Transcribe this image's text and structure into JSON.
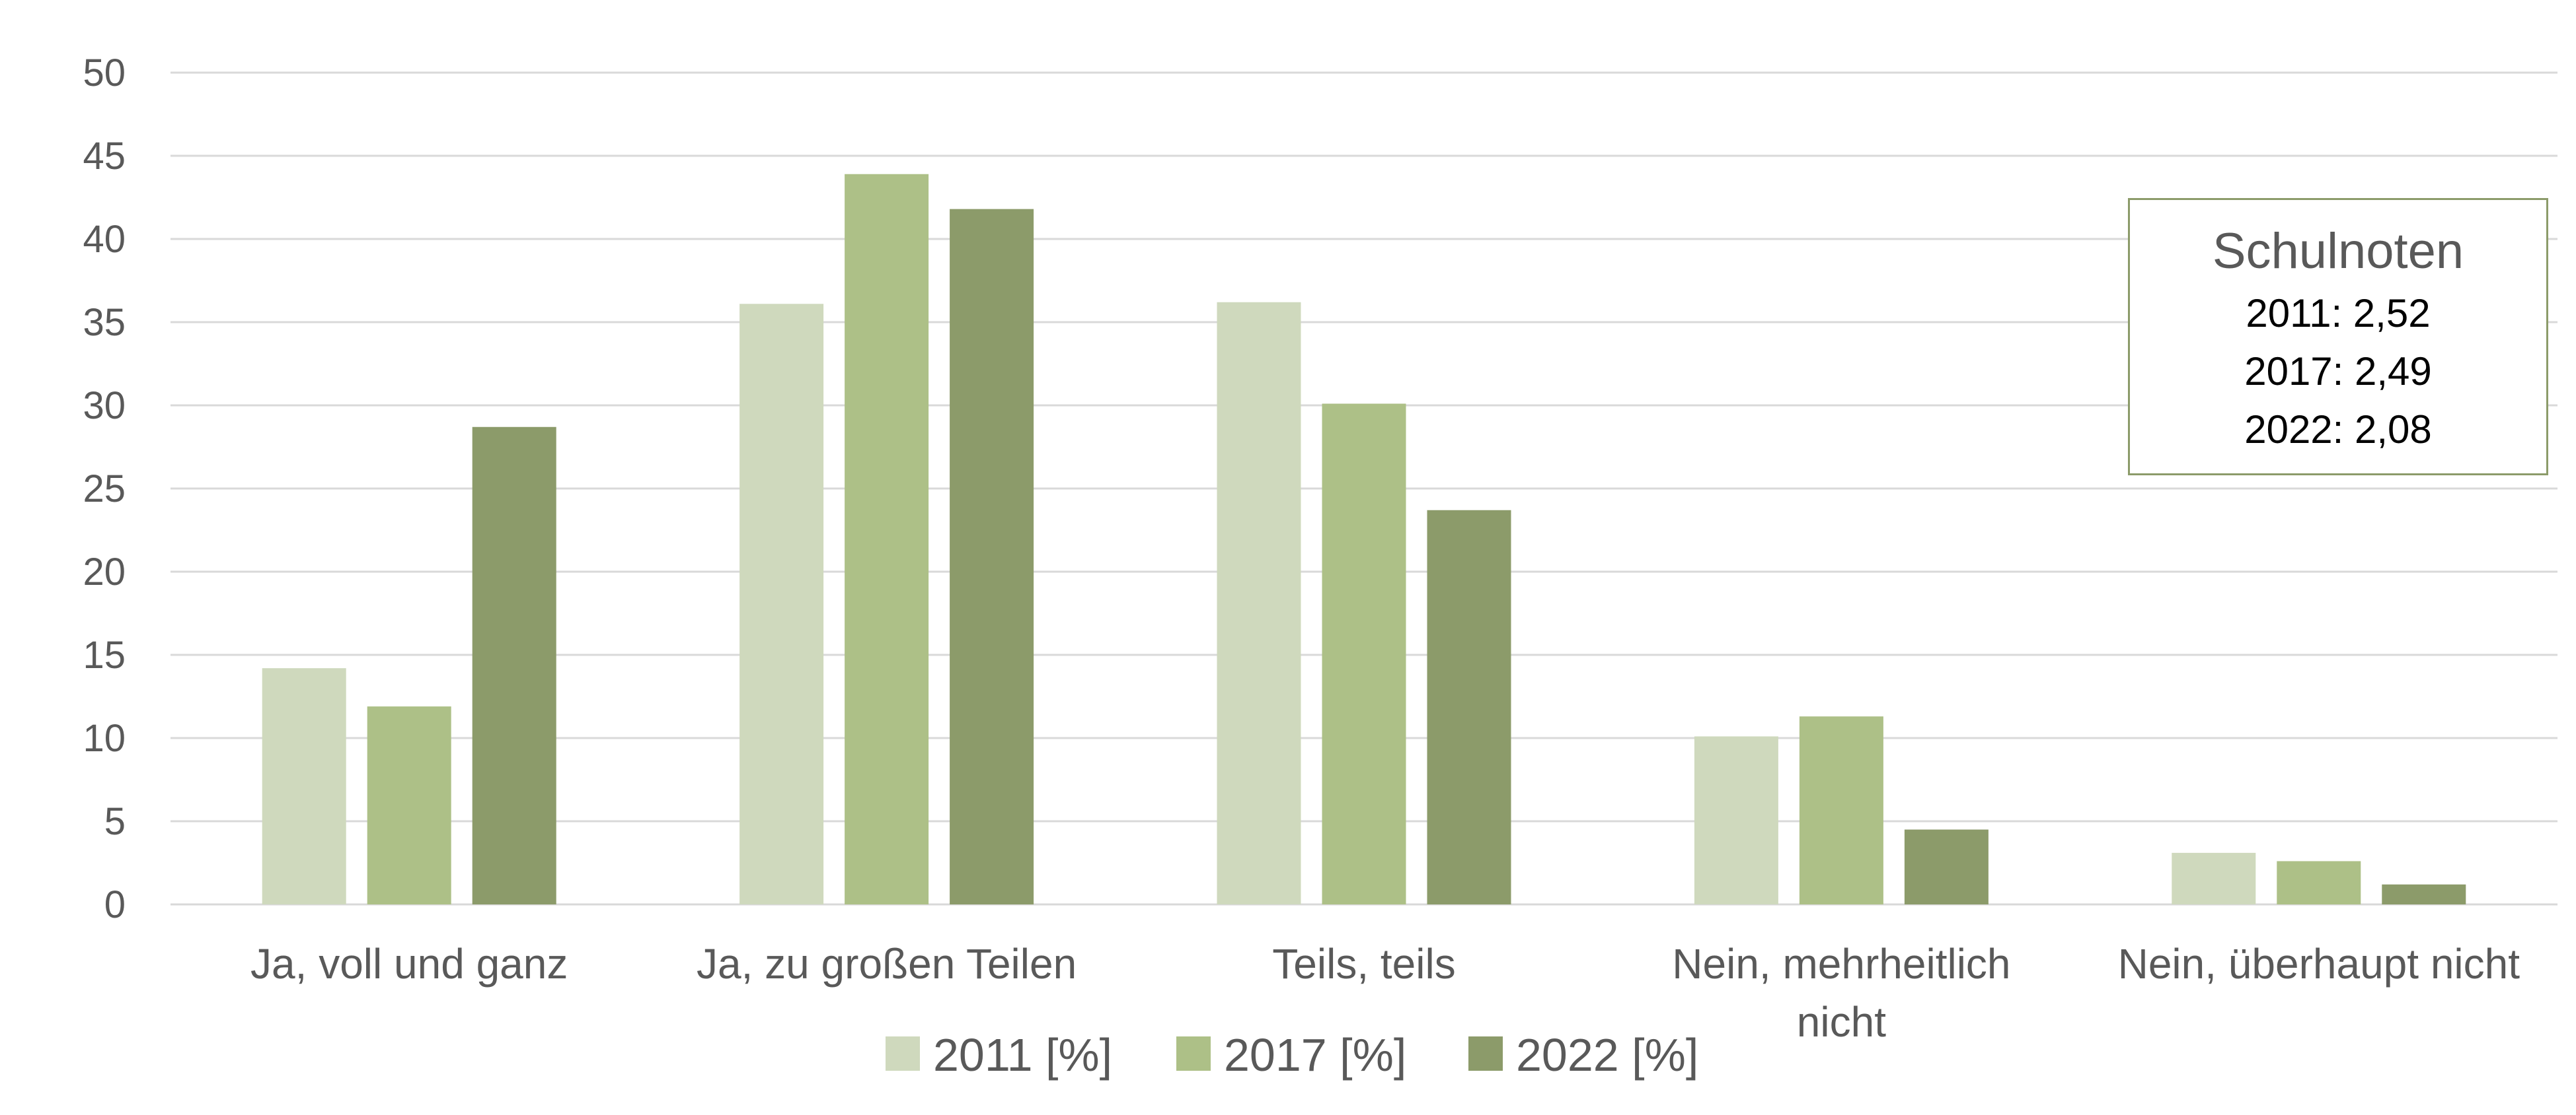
{
  "chart_data": {
    "type": "bar",
    "title": "",
    "xlabel": "",
    "ylabel": "",
    "ylim": [
      0,
      50
    ],
    "yticks": [
      "0",
      "5",
      "10",
      "15",
      "20",
      "25",
      "30",
      "35",
      "40",
      "45",
      "50"
    ],
    "grid": true,
    "legend_position": "bottom",
    "categories": [
      [
        "Ja, voll und ganz"
      ],
      [
        "Ja, zu großen Teilen"
      ],
      [
        "Teils, teils"
      ],
      [
        "Nein, mehrheitlich",
        "nicht"
      ],
      [
        "Nein, überhaupt nicht"
      ]
    ],
    "series": [
      {
        "name": "2011 [%]",
        "color": "#cfd9bd",
        "values": [
          14.2,
          36.1,
          36.2,
          10.1,
          3.1
        ]
      },
      {
        "name": "2017 [%]",
        "color": "#adc087",
        "values": [
          11.9,
          43.9,
          30.1,
          11.3,
          2.6
        ]
      },
      {
        "name": "2022 [%]",
        "color": "#8c9b6a",
        "values": [
          28.7,
          41.8,
          23.7,
          4.5,
          1.2
        ]
      }
    ],
    "annotation": {
      "title": "Schulnoten",
      "lines": [
        "2011: 2,52",
        "2017: 2,49",
        "2022: 2,08"
      ]
    }
  }
}
